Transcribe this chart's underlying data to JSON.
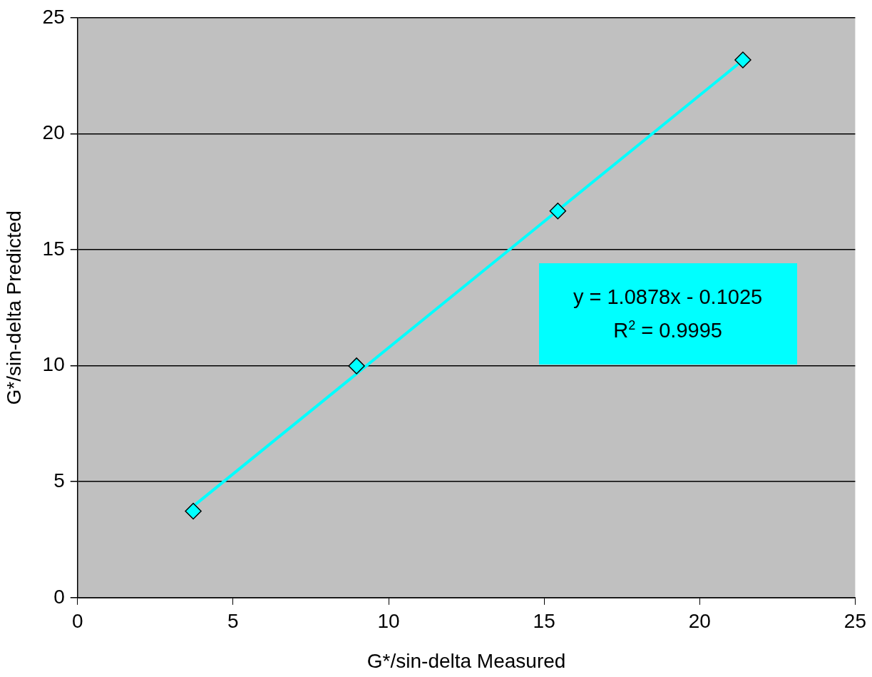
{
  "chart_data": {
    "type": "scatter",
    "xlabel": "G*/sin-delta Measured",
    "ylabel": "G*/sin-delta Predicted",
    "series": [
      {
        "color": "#00ffff",
        "marker": "diamond",
        "x": [
          3.72,
          8.97,
          15.44,
          21.39
        ],
        "values": [
          3.73,
          9.99,
          16.67,
          23.18
        ]
      },
      {
        "type": "line",
        "color": "#00ffff",
        "marker": "none",
        "x": [
          3.72,
          21.39
        ],
        "values": [
          3.94,
          23.17
        ]
      }
    ],
    "annotations": [
      "y = 1.0878x - 0.1025",
      "R$^{2}$ = 0.9995"
    ],
    "xlim": [
      0,
      25
    ],
    "xticks": [
      0,
      5,
      10,
      15,
      20,
      25
    ],
    "ylim": [
      0,
      25
    ],
    "yticks": [
      0,
      5,
      10,
      15,
      20,
      25
    ],
    "grid": "y",
    "legend": false
  }
}
